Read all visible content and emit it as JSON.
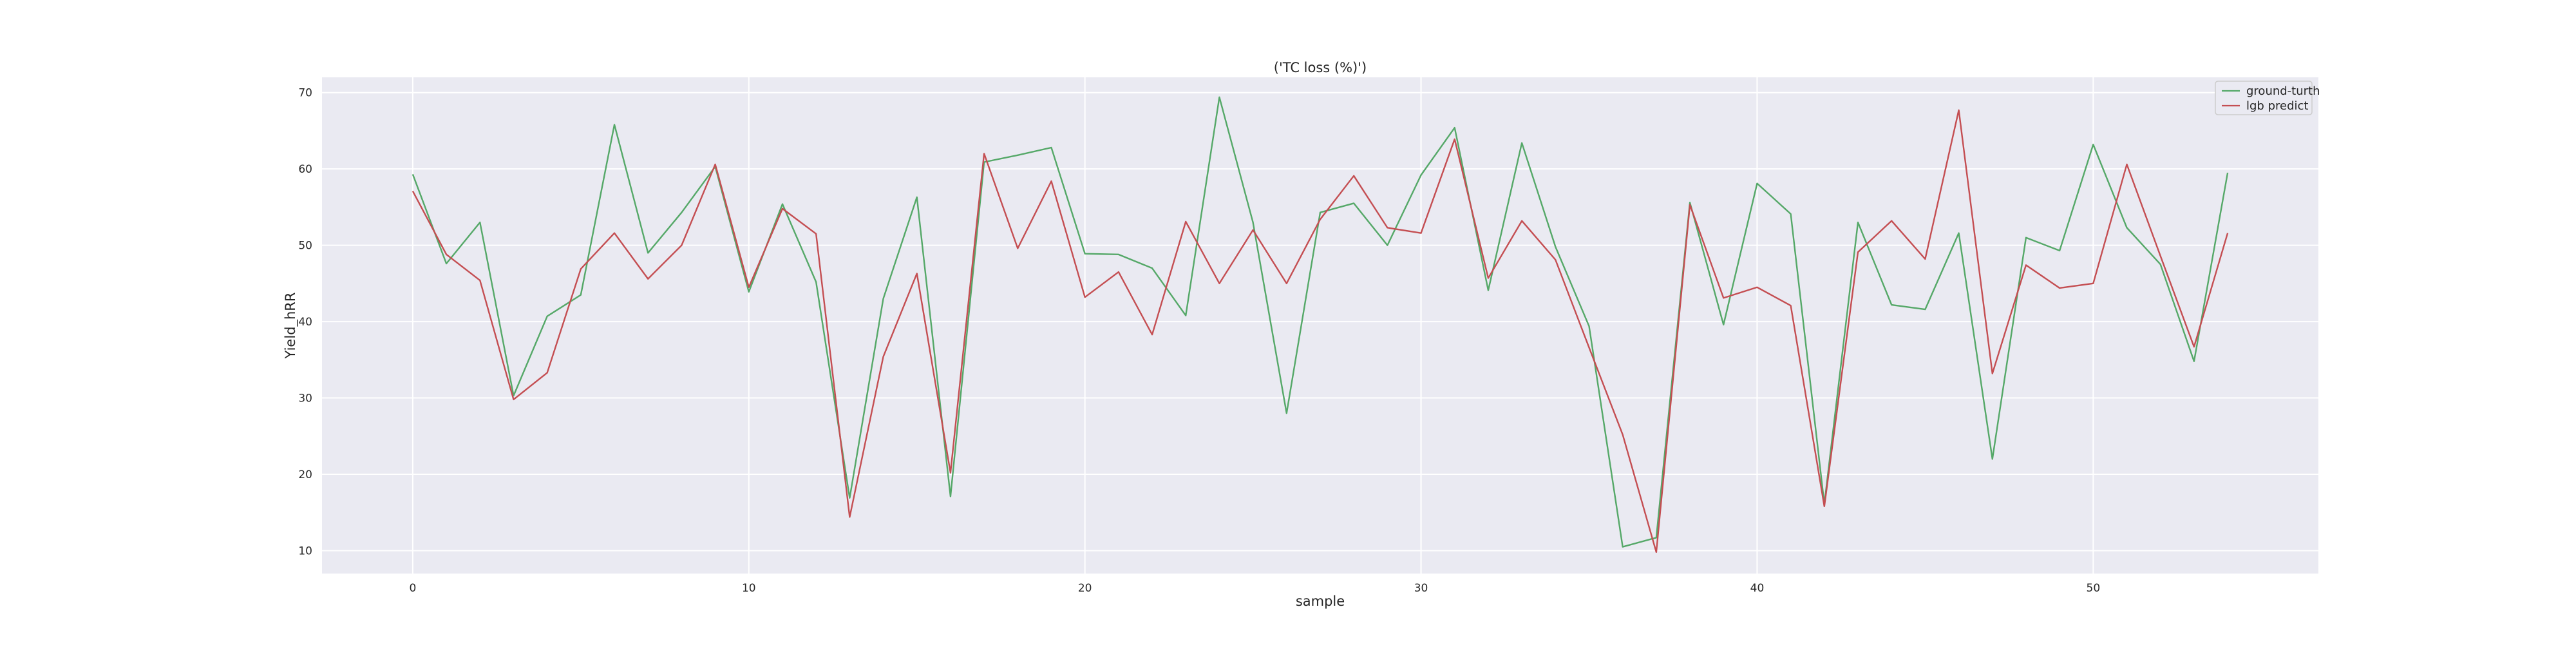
{
  "chart_data": {
    "type": "line",
    "title": "('TC loss (%)')",
    "xlabel": "sample",
    "ylabel": "Yield_hRR",
    "xlim": [
      -2.7,
      56.7
    ],
    "ylim": [
      7,
      72
    ],
    "xticks": [
      0,
      10,
      20,
      30,
      40,
      50
    ],
    "yticks": [
      10,
      20,
      30,
      40,
      50,
      60,
      70
    ],
    "grid": true,
    "legend_position": "upper right",
    "x": [
      0,
      1,
      2,
      3,
      4,
      5,
      6,
      7,
      8,
      9,
      10,
      11,
      12,
      13,
      14,
      15,
      16,
      17,
      18,
      19,
      20,
      21,
      22,
      23,
      24,
      25,
      26,
      27,
      28,
      29,
      30,
      31,
      32,
      33,
      34,
      35,
      36,
      37,
      38,
      39,
      40,
      41,
      42,
      43,
      44,
      45,
      46,
      47,
      48,
      49,
      50,
      51,
      52,
      53,
      54
    ],
    "series": [
      {
        "name": "ground-turth",
        "color": "#55a868",
        "values": [
          59.3,
          47.6,
          53.0,
          30.3,
          40.7,
          43.5,
          65.8,
          49.0,
          54.3,
          60.3,
          43.9,
          55.4,
          45.2,
          16.9,
          43.0,
          56.3,
          17.1,
          60.9,
          61.8,
          62.8,
          48.9,
          48.8,
          47.0,
          40.8,
          69.4,
          53.0,
          28.0,
          54.3,
          55.5,
          50.0,
          59.2,
          65.4,
          44.1,
          63.4,
          49.8,
          39.4,
          10.5,
          11.7,
          55.6,
          39.6,
          58.1,
          54.1,
          16.1,
          53.0,
          42.2,
          41.6,
          51.6,
          22.0,
          51.0,
          49.3,
          63.2,
          52.3,
          47.5,
          34.8,
          59.5
        ]
      },
      {
        "name": "lgb predict",
        "color": "#c44e52",
        "values": [
          57.1,
          48.8,
          45.4,
          29.8,
          33.3,
          46.9,
          51.6,
          45.6,
          50.0,
          60.6,
          44.5,
          54.8,
          51.5,
          14.4,
          35.4,
          46.3,
          20.2,
          62.0,
          49.6,
          58.4,
          43.2,
          46.5,
          38.3,
          53.1,
          45.0,
          52.0,
          45.0,
          53.4,
          59.1,
          52.3,
          51.6,
          63.9,
          45.7,
          53.2,
          48.1,
          36.6,
          25.2,
          9.8,
          55.3,
          43.1,
          44.5,
          42.1,
          15.8,
          49.1,
          53.2,
          48.2,
          67.7,
          33.2,
          47.4,
          44.4,
          45.0,
          60.6,
          48.6,
          36.7,
          51.6
        ]
      }
    ]
  }
}
